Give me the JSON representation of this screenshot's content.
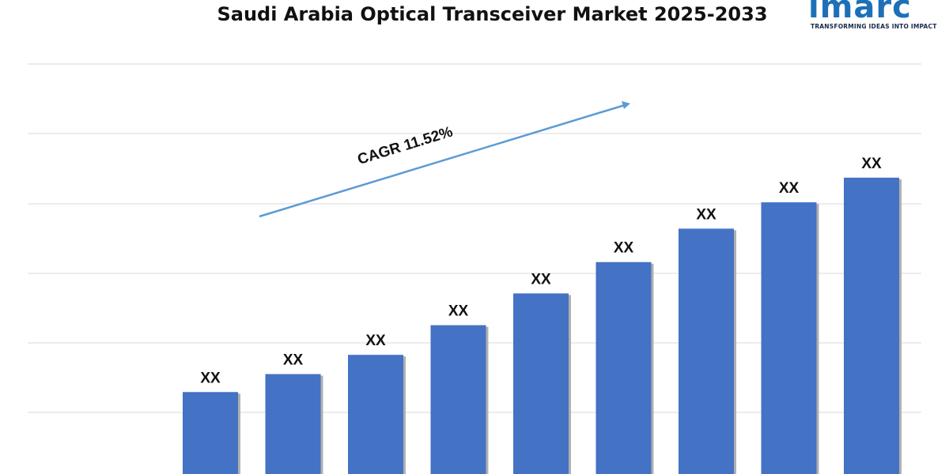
{
  "logo": {
    "wordmark": "imarc",
    "tagline": "TRANSFORMING IDEAS INTO IMPACT",
    "color": "#1d70b8"
  },
  "chart_data": {
    "type": "bar",
    "title": "Saudi Arabia Optical Transceiver Market 2025-2033",
    "xlabel": "",
    "ylabel": "",
    "relative_values": [
      0.215,
      0.258,
      0.304,
      0.375,
      0.451,
      0.526,
      0.606,
      0.669,
      0.728
    ],
    "data_labels": [
      "XX",
      "XX",
      "XX",
      "XX",
      "XX",
      "XX",
      "XX",
      "XX",
      "XX"
    ],
    "annotation": "CAGR 11.52%",
    "grid": true,
    "bar_color": "#4472c4",
    "gridline_color": "#d9d9d9",
    "arrow_color": "#5b9bd5"
  }
}
